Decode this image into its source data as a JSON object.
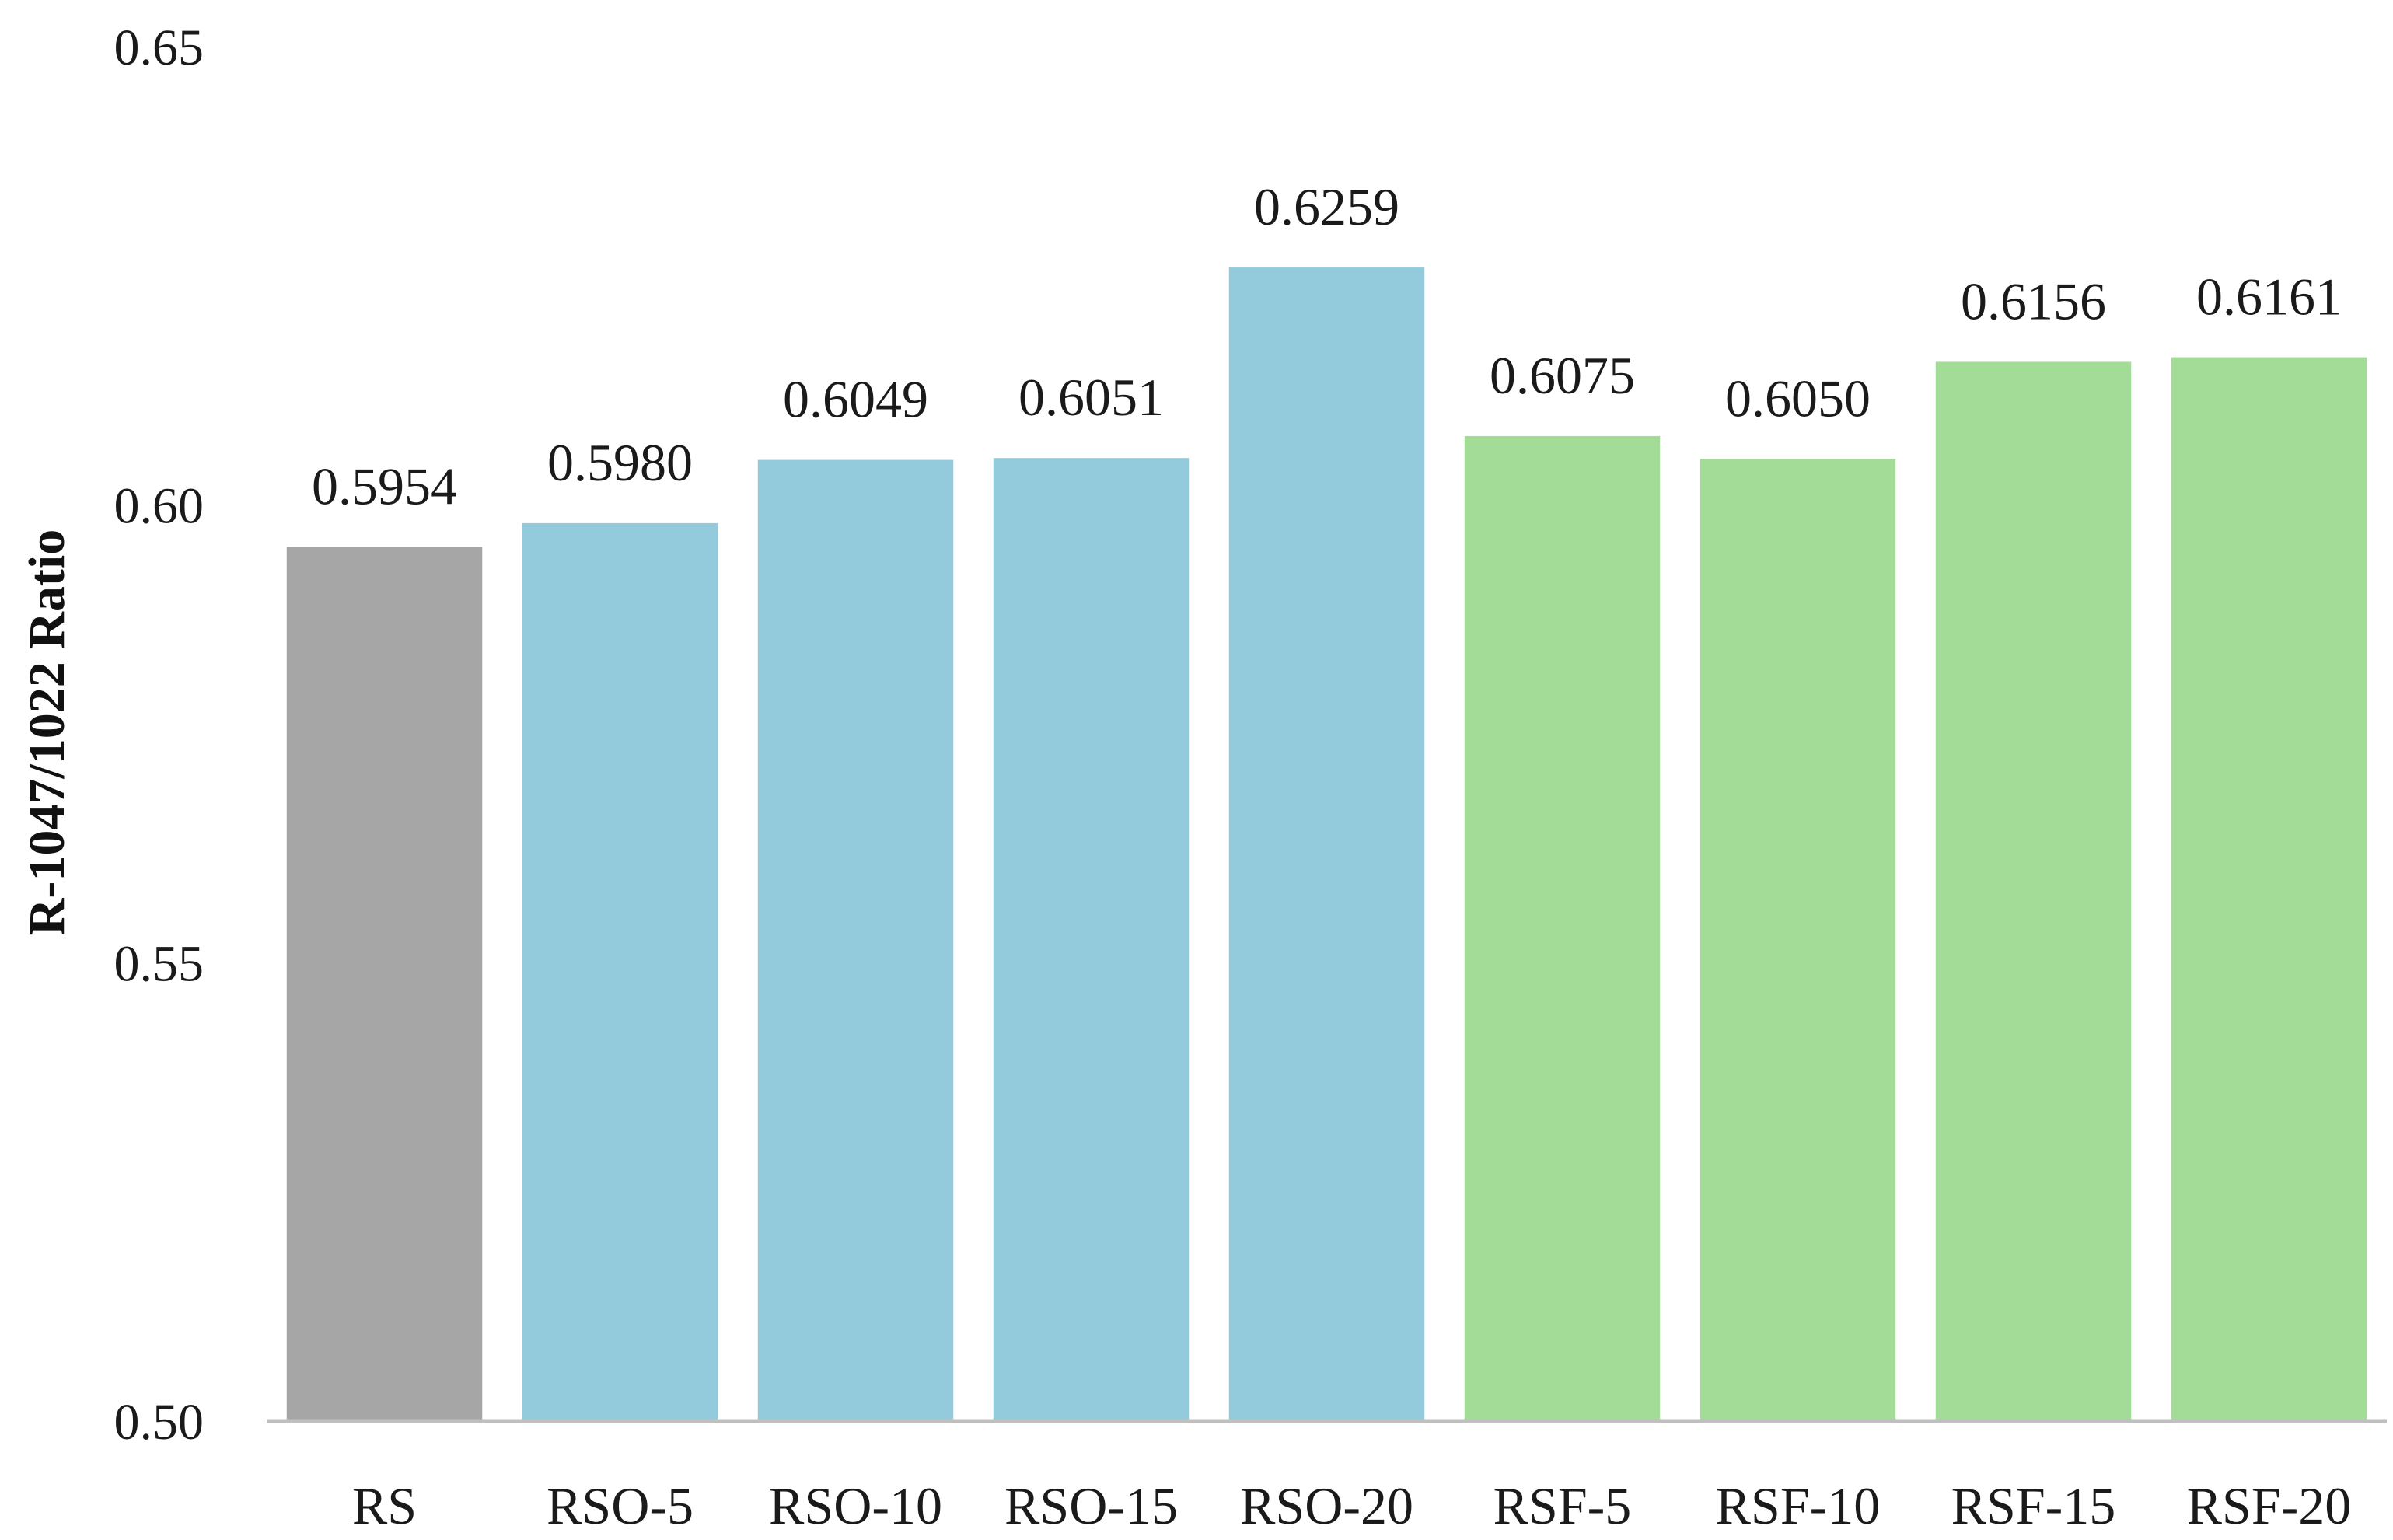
{
  "chart_data": {
    "type": "bar",
    "title": "",
    "xlabel": "",
    "ylabel": "R-1047/1022 Ratio",
    "ylim": [
      0.5,
      0.65
    ],
    "yticks": [
      "0.50",
      "0.55",
      "0.60",
      "0.65"
    ],
    "grid": false,
    "categories": [
      "RS",
      "RSO-5",
      "RSO-10",
      "RSO-15",
      "RSO-20",
      "RSF-5",
      "RSF-10",
      "RSF-15",
      "RSF-20"
    ],
    "values": [
      0.5954,
      0.598,
      0.6049,
      0.6051,
      0.6259,
      0.6075,
      0.605,
      0.6156,
      0.6161
    ],
    "value_labels": [
      "0.5954",
      "0.5980",
      "0.6049",
      "0.6051",
      "0.6259",
      "0.6075",
      "0.6050",
      "0.6156",
      "0.6161"
    ],
    "colors": [
      "#a6a6a6",
      "#93cbdc",
      "#93cbdc",
      "#93cbdc",
      "#93cbdc",
      "#a2dc96",
      "#a2dc96",
      "#a2dc96",
      "#a2dc96"
    ],
    "axis_color": "#bfbfbf"
  }
}
